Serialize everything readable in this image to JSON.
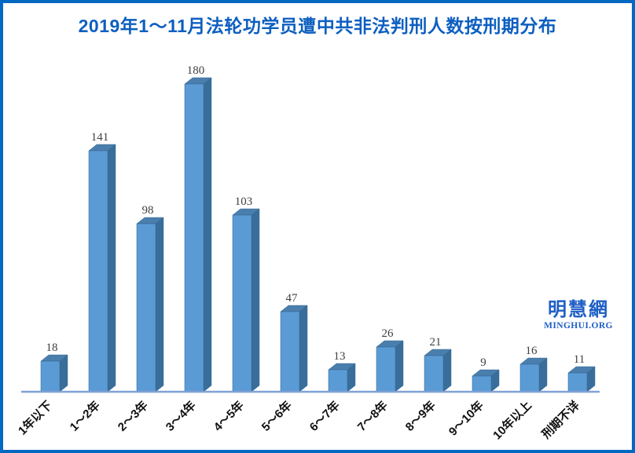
{
  "page": {
    "background": "#FFFFFF",
    "border_color": "#0069C2"
  },
  "header": {
    "title": "2019年1～11月法轮功学员遭中共非法判刑人数按刑期分布",
    "title_color": "#0D5FC0"
  },
  "watermark": {
    "name": "明慧網",
    "url": "MINGHUI.ORG",
    "color": "#1E5EC6"
  },
  "chart_data": {
    "type": "bar",
    "style": "3d-column",
    "title": "2019年1～11月法轮功学员遭中共非法判刑人数按刑期分布",
    "categories": [
      "1年以下",
      "1～2年",
      "2～3年",
      "3～4年",
      "4～5年",
      "5～6年",
      "6～7年",
      "7～8年",
      "8～9年",
      "9～10年",
      "10年以上",
      "刑期不详"
    ],
    "values": [
      18,
      141,
      98,
      180,
      103,
      47,
      13,
      26,
      21,
      9,
      16,
      11
    ],
    "xlabel": "",
    "ylabel": "",
    "ylim": [
      0,
      190
    ],
    "grid": false,
    "legend": false,
    "y_axis_visible": false,
    "data_labels": true,
    "category_label_rotation": -45,
    "colors": {
      "bar_front": "#5B9BD5",
      "bar_top": "#4A7FAD",
      "bar_side": "#3A6E9A",
      "bar_edge": "#35648F",
      "axis_line": "#7FA2D6",
      "value_label": "#404040",
      "category_label": "#111111"
    }
  }
}
